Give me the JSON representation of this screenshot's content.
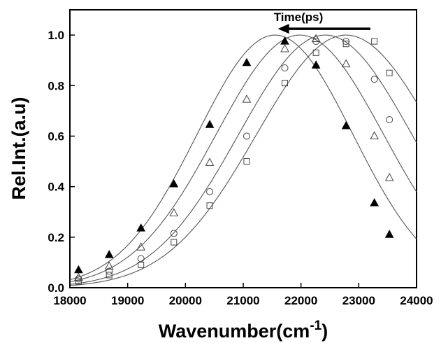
{
  "chart_data": {
    "type": "scatter",
    "xlabel": "Wavenumber(cm",
    "xlabel_superscript": "-1",
    "xlabel_close": ")",
    "ylabel": "Rel.Int.(a.u)",
    "xlim": [
      18000,
      24000
    ],
    "ylim": [
      0.0,
      1.1
    ],
    "x_ticks": [
      "18000",
      "19000",
      "20000",
      "21000",
      "22000",
      "23000",
      "24000"
    ],
    "y_ticks": [
      "0.0",
      "0.2",
      "0.4",
      "0.6",
      "0.8",
      "1.0"
    ],
    "x_tick_values": [
      18000,
      19000,
      20000,
      21000,
      22000,
      23000,
      24000
    ],
    "y_tick_values": [
      0.0,
      0.2,
      0.4,
      0.6,
      0.8,
      1.0
    ],
    "grid": false,
    "annotation": {
      "text": "Time(ps)",
      "arrow_direction": "left",
      "arrow_from": 23200,
      "arrow_to": 21600,
      "level": 1.025
    },
    "series": [
      {
        "marker": "filled-triangle",
        "x": [
          18150,
          18680,
          19230,
          19800,
          20420,
          21060,
          21720,
          22260,
          22780,
          23270,
          23530
        ],
        "y": [
          0.07,
          0.13,
          0.235,
          0.41,
          0.645,
          0.89,
          0.975,
          0.88,
          0.64,
          0.335,
          0.21
        ],
        "fit": {
          "peak": 21550,
          "sigma": 1350
        }
      },
      {
        "marker": "open-triangle",
        "x": [
          18150,
          18680,
          19230,
          19800,
          20420,
          21060,
          21720,
          22260,
          22780,
          23270,
          23530
        ],
        "y": [
          0.04,
          0.085,
          0.16,
          0.295,
          0.495,
          0.745,
          0.945,
          0.985,
          0.885,
          0.6,
          0.435
        ],
        "fit": {
          "peak": 21980,
          "sigma": 1450
        }
      },
      {
        "marker": "open-circle",
        "x": [
          18150,
          18680,
          19230,
          19800,
          20420,
          21060,
          21720,
          22260,
          22780,
          23270,
          23530
        ],
        "y": [
          0.035,
          0.065,
          0.115,
          0.215,
          0.38,
          0.6,
          0.87,
          0.975,
          0.975,
          0.825,
          0.665
        ],
        "fit": {
          "peak": 22420,
          "sigma": 1500
        }
      },
      {
        "marker": "open-square",
        "x": [
          18150,
          18680,
          19230,
          19800,
          20420,
          21060,
          21720,
          22260,
          22780,
          23270,
          23530
        ],
        "y": [
          0.025,
          0.05,
          0.09,
          0.18,
          0.325,
          0.5,
          0.81,
          0.93,
          0.965,
          0.975,
          0.85
        ],
        "fit": {
          "peak": 22780,
          "sigma": 1550
        }
      }
    ]
  }
}
